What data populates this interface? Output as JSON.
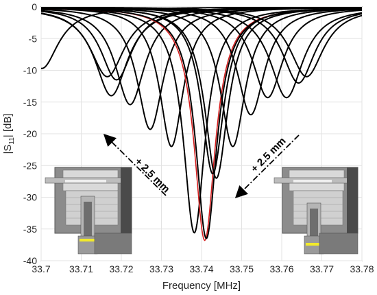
{
  "chart_data": {
    "type": "line",
    "xlabel": "Frequency [MHz]",
    "ylabel": "|S",
    "ylabel_sub": "11",
    "ylabel_tail": "| [dB]",
    "xlim": [
      33.7,
      33.78
    ],
    "ylim": [
      -40,
      0
    ],
    "x_ticks": [
      "33.7",
      "33.71",
      "33.72",
      "33.73",
      "33.74",
      "33.75",
      "33.76",
      "33.77",
      "33.78"
    ],
    "y_ticks": [
      "0",
      "-5",
      "-10",
      "-15",
      "-20",
      "-25",
      "-30",
      "-35",
      "-40"
    ],
    "grid": true,
    "series": [
      {
        "color": "#000000",
        "center": 33.7002,
        "depth": -9.7,
        "width": 0.005
      },
      {
        "color": "#000000",
        "center": 33.7165,
        "depth": -11.0,
        "width": 0.0052
      },
      {
        "color": "#000000",
        "center": 33.7175,
        "depth": -14.0,
        "width": 0.005
      },
      {
        "color": "#000000",
        "center": 33.7188,
        "depth": -11.5,
        "width": 0.0048
      },
      {
        "color": "#000000",
        "center": 33.7222,
        "depth": -15.4,
        "width": 0.0045
      },
      {
        "color": "#000000",
        "center": 33.7272,
        "depth": -19.3,
        "width": 0.004
      },
      {
        "color": "#000000",
        "center": 33.7325,
        "depth": -22.0,
        "width": 0.0036
      },
      {
        "color": "#000000",
        "center": 33.7382,
        "depth": -35.6,
        "width": 0.0033
      },
      {
        "color": "#d62020",
        "center": 33.7408,
        "depth": -36.8,
        "width": 0.0032
      },
      {
        "color": "#000000",
        "center": 33.7412,
        "depth": -36.5,
        "width": 0.0032
      },
      {
        "color": "#000000",
        "center": 33.7428,
        "depth": -26.3,
        "width": 0.0034
      },
      {
        "color": "#000000",
        "center": 33.7437,
        "depth": -27.0,
        "width": 0.0035
      },
      {
        "color": "#000000",
        "center": 33.7478,
        "depth": -22.0,
        "width": 0.0038
      },
      {
        "color": "#000000",
        "center": 33.7523,
        "depth": -17.0,
        "width": 0.0042
      },
      {
        "color": "#000000",
        "center": 33.7565,
        "depth": -14.3,
        "width": 0.0046
      },
      {
        "color": "#000000",
        "center": 33.7612,
        "depth": -14.3,
        "width": 0.005
      },
      {
        "color": "#000000",
        "center": 33.7642,
        "depth": -12.0,
        "width": 0.005
      },
      {
        "color": "#000000",
        "center": 33.7662,
        "depth": -11.0,
        "width": 0.0052
      }
    ],
    "annotations": [
      {
        "text": "+ 2.5 mm",
        "direction": "left"
      },
      {
        "text": "+ 2.5 mm",
        "direction": "right"
      }
    ]
  }
}
